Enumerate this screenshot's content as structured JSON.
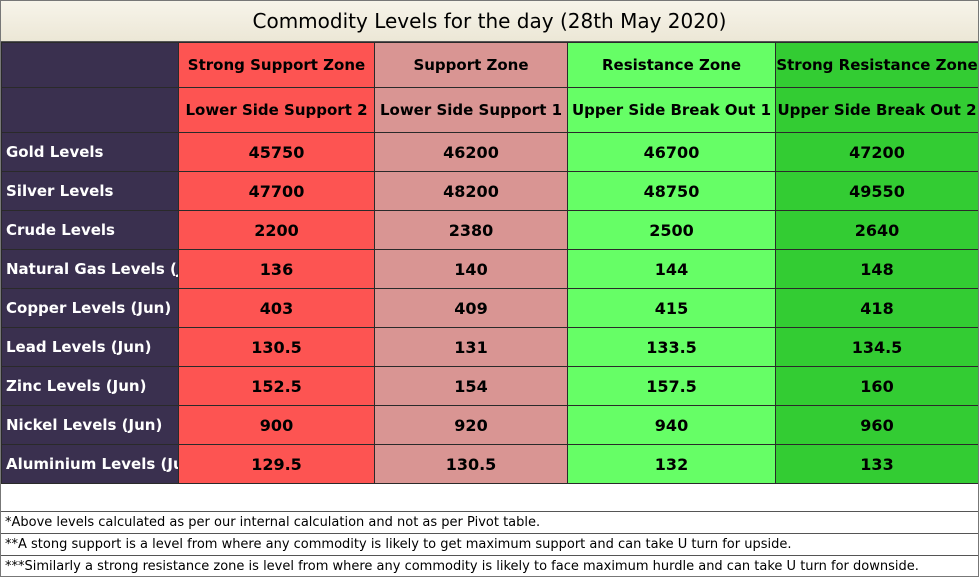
{
  "title": "Commodity Levels for the day (28th May 2020)",
  "zones": [
    {
      "zone": "Strong Support Zone",
      "sub": "Lower Side Support 2",
      "color": "#fd5452"
    },
    {
      "zone": "Support Zone",
      "sub": "Lower Side Support 1",
      "color": "#d99593"
    },
    {
      "zone": "Resistance Zone",
      "sub": "Upper Side Break Out 1",
      "color": "#66fe66"
    },
    {
      "zone": "Strong Resistance Zone",
      "sub": "Upper Side Break Out 2",
      "color": "#33cc33"
    }
  ],
  "rows": [
    {
      "label": "Gold Levels",
      "values": [
        "45750",
        "46200",
        "46700",
        "47200"
      ]
    },
    {
      "label": "Silver Levels",
      "values": [
        "47700",
        "48200",
        "48750",
        "49550"
      ]
    },
    {
      "label": "Crude Levels",
      "values": [
        "2200",
        "2380",
        "2500",
        "2640"
      ]
    },
    {
      "label": "Natural Gas Levels (Ju",
      "values": [
        "136",
        "140",
        "144",
        "148"
      ]
    },
    {
      "label": "Copper Levels (Jun)",
      "values": [
        "403",
        "409",
        "415",
        "418"
      ]
    },
    {
      "label": "Lead Levels (Jun)",
      "values": [
        "130.5",
        "131",
        "133.5",
        "134.5"
      ]
    },
    {
      "label": "Zinc Levels (Jun)",
      "values": [
        "152.5",
        "154",
        "157.5",
        "160"
      ]
    },
    {
      "label": "Nickel Levels (Jun)",
      "values": [
        "900",
        "920",
        "940",
        "960"
      ]
    },
    {
      "label": "Aluminium Levels (Jun",
      "values": [
        "129.5",
        "130.5",
        "132",
        "133"
      ]
    }
  ],
  "notes": [
    "*Above levels calculated as per our internal calculation and not as per Pivot table.",
    "**A stong support is a level from where any commodity is likely to get maximum support and can take U turn for upside.",
    "***Similarly a strong resistance zone is level from where any commodity is likely to face maximum hurdle and can take U turn for downside."
  ]
}
